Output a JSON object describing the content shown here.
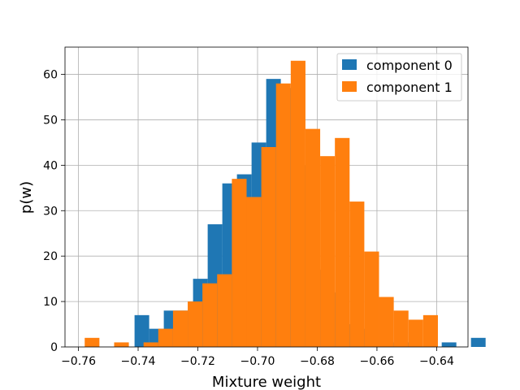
{
  "chart_data": {
    "type": "bar",
    "subtype": "overlaid-histogram",
    "xlabel": "Mixture weight",
    "ylabel": "p(w)",
    "xlim": [
      -0.7645,
      -0.6295
    ],
    "ylim": [
      0,
      66
    ],
    "grid": true,
    "legend_position": "top-right",
    "xticks": [
      -0.76,
      -0.74,
      -0.72,
      -0.7,
      -0.68,
      -0.66,
      -0.64
    ],
    "xtick_labels": [
      "−0.76",
      "−0.74",
      "−0.72",
      "−0.70",
      "−0.68",
      "−0.66",
      "−0.64"
    ],
    "yticks": [
      0,
      10,
      20,
      30,
      40,
      50,
      60
    ],
    "ytick_labels": [
      "0",
      "10",
      "20",
      "30",
      "40",
      "50",
      "60"
    ],
    "series": [
      {
        "name": "component 0",
        "color": "#1f77b4",
        "bin_start": -0.7412,
        "bin_width": 0.0049,
        "values": [
          7,
          4,
          8,
          8,
          15,
          27,
          36,
          38,
          45,
          59,
          57,
          40,
          17,
          12,
          5,
          4,
          0,
          1,
          1,
          0,
          0,
          1,
          0,
          2
        ]
      },
      {
        "name": "component 1",
        "color": "#ff7f0e",
        "bin_start": -0.7579,
        "bin_width": 0.00493,
        "values": [
          2,
          0,
          1,
          0,
          1,
          4,
          8,
          10,
          14,
          16,
          37,
          33,
          44,
          58,
          63,
          48,
          42,
          46,
          32,
          21,
          11,
          8,
          6,
          7
        ]
      }
    ]
  }
}
